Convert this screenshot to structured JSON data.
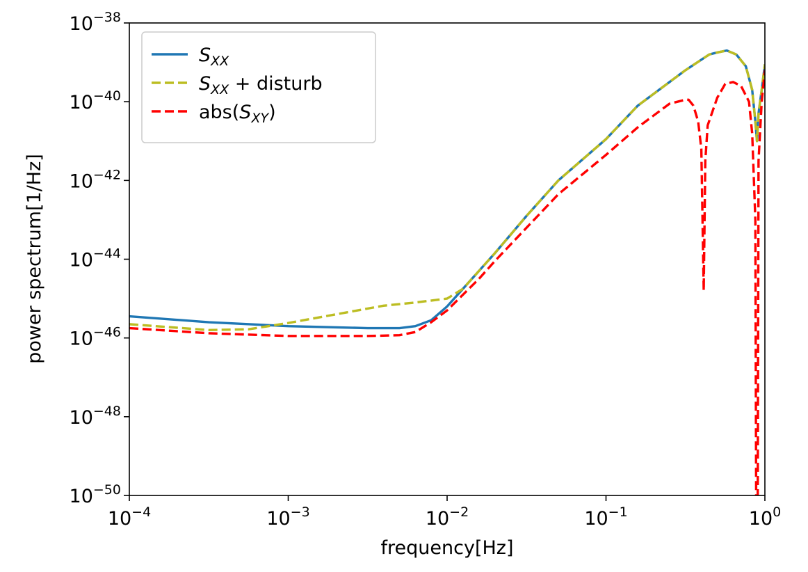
{
  "chart_data": {
    "type": "line",
    "xlabel": "frequency[Hz]",
    "ylabel": "power spectrum[1/Hz]",
    "xscale": "log",
    "yscale": "log",
    "xlim_log10": [
      -4,
      0
    ],
    "ylim_log10": [
      -50,
      -38
    ],
    "xticks": [
      {
        "base": "10",
        "exp": "−4",
        "log10": -4
      },
      {
        "base": "10",
        "exp": "−3",
        "log10": -3
      },
      {
        "base": "10",
        "exp": "−2",
        "log10": -2
      },
      {
        "base": "10",
        "exp": "−1",
        "log10": -1
      },
      {
        "base": "10",
        "exp": "0",
        "log10": 0
      }
    ],
    "yticks": [
      {
        "base": "10",
        "exp": "−38",
        "log10": -38
      },
      {
        "base": "10",
        "exp": "−40",
        "log10": -40
      },
      {
        "base": "10",
        "exp": "−42",
        "log10": -42
      },
      {
        "base": "10",
        "exp": "−44",
        "log10": -44
      },
      {
        "base": "10",
        "exp": "−46",
        "log10": -46
      },
      {
        "base": "10",
        "exp": "−48",
        "log10": -48
      },
      {
        "base": "10",
        "exp": "−50",
        "log10": -50
      }
    ],
    "legend": {
      "placement": "top-left",
      "entries": [
        {
          "main": "S",
          "sub": "XX",
          "prefix": "",
          "suffix": ""
        },
        {
          "main": "S",
          "sub": "XX",
          "prefix": "",
          "suffix": " + disturb"
        },
        {
          "main": "S",
          "sub": "XY",
          "prefix": "abs(",
          "suffix": ")"
        }
      ]
    },
    "series": [
      {
        "name": "S_XX",
        "color": "#1f77b4",
        "style": "solid",
        "points_log10": [
          [
            -4.0,
            -45.45
          ],
          [
            -3.5,
            -45.6
          ],
          [
            -3.0,
            -45.7
          ],
          [
            -2.5,
            -45.75
          ],
          [
            -2.3,
            -45.75
          ],
          [
            -2.2,
            -45.7
          ],
          [
            -2.1,
            -45.55
          ],
          [
            -2.0,
            -45.2
          ],
          [
            -1.9,
            -44.75
          ],
          [
            -1.8,
            -44.3
          ],
          [
            -1.7,
            -43.85
          ],
          [
            -1.5,
            -42.9
          ],
          [
            -1.3,
            -42.0
          ],
          [
            -1.0,
            -40.95
          ],
          [
            -0.8,
            -40.1
          ],
          [
            -0.5,
            -39.2
          ],
          [
            -0.35,
            -38.8
          ],
          [
            -0.3,
            -38.75
          ],
          [
            -0.24,
            -38.7
          ],
          [
            -0.18,
            -38.8
          ],
          [
            -0.12,
            -39.1
          ],
          [
            -0.08,
            -39.7
          ],
          [
            -0.06,
            -40.5
          ],
          [
            -0.05,
            -41.0
          ],
          [
            -0.04,
            -40.3
          ],
          [
            -0.02,
            -39.7
          ],
          [
            0.0,
            -39.05
          ]
        ]
      },
      {
        "name": "S_XX + disturb",
        "color": "#bcbd22",
        "style": "dashed",
        "points_log10": [
          [
            -4.0,
            -45.65
          ],
          [
            -3.5,
            -45.8
          ],
          [
            -3.25,
            -45.78
          ],
          [
            -3.0,
            -45.62
          ],
          [
            -2.7,
            -45.4
          ],
          [
            -2.4,
            -45.18
          ],
          [
            -2.2,
            -45.1
          ],
          [
            -2.0,
            -45.0
          ],
          [
            -1.9,
            -44.75
          ],
          [
            -1.8,
            -44.3
          ],
          [
            -1.7,
            -43.85
          ],
          [
            -1.5,
            -42.9
          ],
          [
            -1.3,
            -42.0
          ],
          [
            -1.0,
            -40.95
          ],
          [
            -0.8,
            -40.1
          ],
          [
            -0.5,
            -39.2
          ],
          [
            -0.35,
            -38.8
          ],
          [
            -0.3,
            -38.75
          ],
          [
            -0.24,
            -38.7
          ],
          [
            -0.18,
            -38.8
          ],
          [
            -0.12,
            -39.1
          ],
          [
            -0.08,
            -39.7
          ],
          [
            -0.06,
            -40.5
          ],
          [
            -0.05,
            -41.0
          ],
          [
            -0.04,
            -40.3
          ],
          [
            -0.02,
            -39.7
          ],
          [
            0.0,
            -39.05
          ]
        ]
      },
      {
        "name": "abs(S_XY)",
        "color": "#ff0000",
        "style": "dashed",
        "points_log10": [
          [
            -4.0,
            -45.75
          ],
          [
            -3.5,
            -45.88
          ],
          [
            -3.0,
            -45.95
          ],
          [
            -2.5,
            -45.95
          ],
          [
            -2.3,
            -45.93
          ],
          [
            -2.2,
            -45.85
          ],
          [
            -2.1,
            -45.6
          ],
          [
            -2.0,
            -45.3
          ],
          [
            -1.9,
            -44.9
          ],
          [
            -1.8,
            -44.5
          ],
          [
            -1.7,
            -44.05
          ],
          [
            -1.5,
            -43.2
          ],
          [
            -1.3,
            -42.35
          ],
          [
            -1.0,
            -41.35
          ],
          [
            -0.8,
            -40.65
          ],
          [
            -0.6,
            -40.05
          ],
          [
            -0.5,
            -39.95
          ],
          [
            -0.48,
            -39.95
          ],
          [
            -0.45,
            -40.1
          ],
          [
            -0.42,
            -40.5
          ],
          [
            -0.4,
            -41.2
          ],
          [
            -0.385,
            -44.8
          ],
          [
            -0.375,
            -41.5
          ],
          [
            -0.36,
            -40.6
          ],
          [
            -0.3,
            -39.9
          ],
          [
            -0.25,
            -39.55
          ],
          [
            -0.2,
            -39.5
          ],
          [
            -0.15,
            -39.6
          ],
          [
            -0.1,
            -40.0
          ],
          [
            -0.08,
            -40.8
          ],
          [
            -0.06,
            -43.0
          ],
          [
            -0.055,
            -50.0
          ],
          [
            -0.045,
            -50.0
          ],
          [
            -0.04,
            -41.5
          ],
          [
            -0.02,
            -40.0
          ],
          [
            0.0,
            -39.2
          ]
        ]
      }
    ]
  }
}
